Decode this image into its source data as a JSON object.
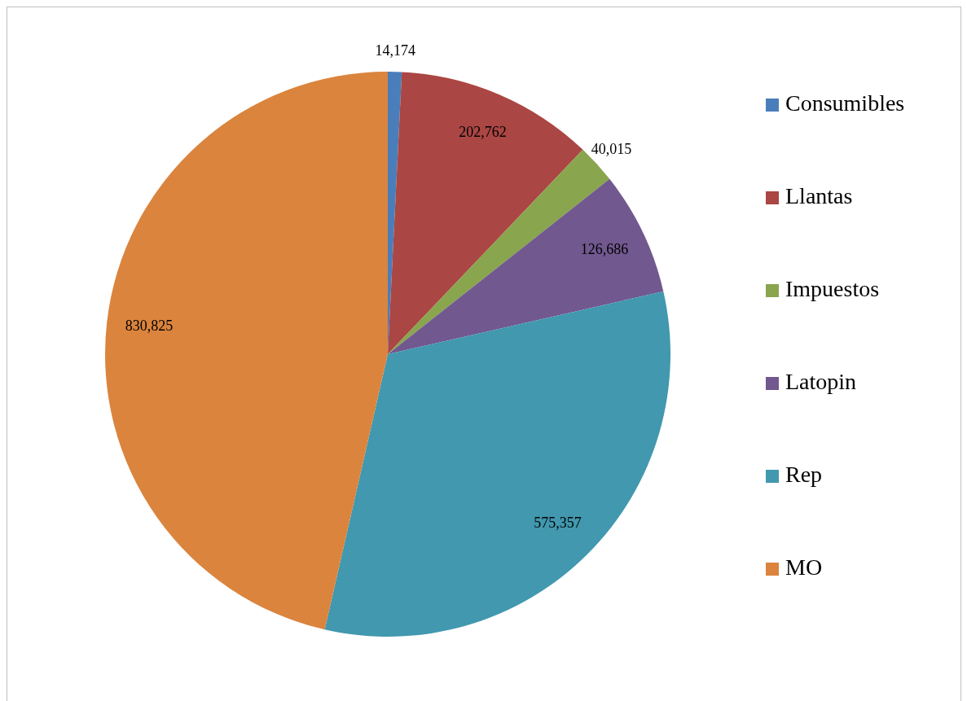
{
  "chart_data": {
    "type": "pie",
    "categories": [
      "Consumibles",
      "Llantas",
      "Impuestos",
      "Latopin",
      "Rep",
      "MO"
    ],
    "values": [
      14174,
      202762,
      40015,
      126686,
      575357,
      830825
    ],
    "colors": [
      "#4a7ebb",
      "#aa4643",
      "#89a54e",
      "#71588f",
      "#4198af",
      "#db843d"
    ],
    "value_labels": [
      "14,174",
      "202,762",
      "40,015",
      "126,686",
      "575,357",
      "830,825"
    ],
    "legend": "right"
  }
}
